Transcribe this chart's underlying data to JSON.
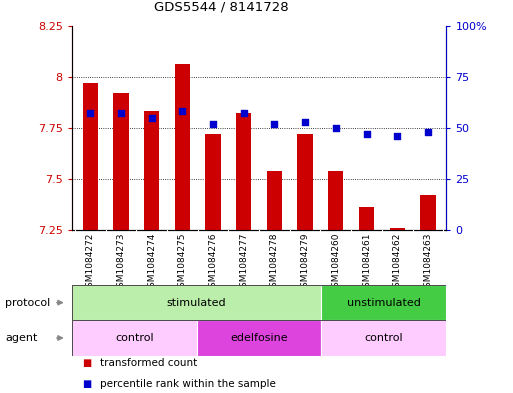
{
  "title": "GDS5544 / 8141728",
  "samples": [
    "GSM1084272",
    "GSM1084273",
    "GSM1084274",
    "GSM1084275",
    "GSM1084276",
    "GSM1084277",
    "GSM1084278",
    "GSM1084279",
    "GSM1084260",
    "GSM1084261",
    "GSM1084262",
    "GSM1084263"
  ],
  "bar_values": [
    7.97,
    7.92,
    7.83,
    8.06,
    7.72,
    7.82,
    7.54,
    7.72,
    7.54,
    7.36,
    7.26,
    7.42
  ],
  "percentile_values": [
    57,
    57,
    55,
    58,
    52,
    57,
    52,
    53,
    50,
    47,
    46,
    48
  ],
  "bar_bottom": 7.25,
  "ylim_left": [
    7.25,
    8.25
  ],
  "ylim_right": [
    0,
    100
  ],
  "yticks_left": [
    7.25,
    7.5,
    7.75,
    8.0,
    8.25
  ],
  "ytick_labels_left": [
    "7.25",
    "7.5",
    "7.75",
    "8",
    "8.25"
  ],
  "yticks_right": [
    0,
    25,
    50,
    75,
    100
  ],
  "ytick_labels_right": [
    "0",
    "25",
    "50",
    "75",
    "100%"
  ],
  "bar_color": "#cc0000",
  "dot_color": "#0000cc",
  "grid_lines": [
    7.5,
    7.75,
    8.0
  ],
  "protocol_groups": [
    {
      "label": "stimulated",
      "start": 0,
      "end": 8,
      "color": "#bbeeaa"
    },
    {
      "label": "unstimulated",
      "start": 8,
      "end": 12,
      "color": "#44cc44"
    }
  ],
  "agent_groups": [
    {
      "label": "control",
      "start": 0,
      "end": 4,
      "color": "#ffccff"
    },
    {
      "label": "edelfosine",
      "start": 4,
      "end": 8,
      "color": "#dd44dd"
    },
    {
      "label": "control",
      "start": 8,
      "end": 12,
      "color": "#ffccff"
    }
  ],
  "legend_items": [
    {
      "label": "transformed count",
      "color": "#cc0000"
    },
    {
      "label": "percentile rank within the sample",
      "color": "#0000cc"
    }
  ],
  "protocol_label": "protocol",
  "agent_label": "agent",
  "bar_width": 0.5,
  "background_color": "#ffffff",
  "xticklabel_bg": "#cccccc",
  "right_axis_labels": [
    "0",
    "25",
    "50",
    "75",
    "100%"
  ]
}
